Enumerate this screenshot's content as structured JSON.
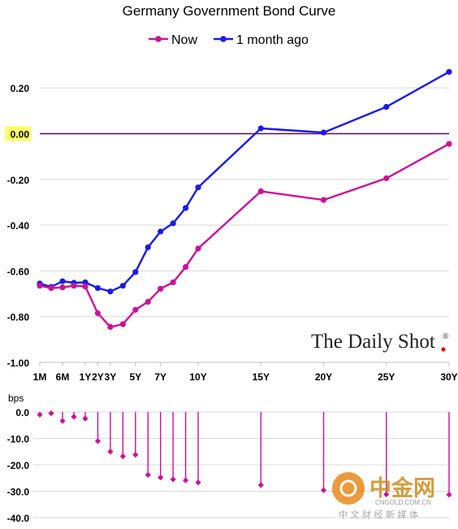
{
  "chart_data": [
    {
      "type": "line",
      "title": "Germany Government Bond Curve",
      "x": [
        "1M",
        "3M",
        "6M",
        "9M",
        "1Y",
        "2Y",
        "3Y",
        "4Y",
        "5Y",
        "6Y",
        "7Y",
        "8Y",
        "9Y",
        "10Y",
        "15Y",
        "20Y",
        "25Y",
        "30Y"
      ],
      "xtick_labels": [
        "1M",
        "6M",
        "1Y",
        "2Y",
        "3Y",
        "5Y",
        "7Y",
        "10Y",
        "15Y",
        "20Y",
        "25Y",
        "30Y"
      ],
      "series": [
        {
          "name": "Now",
          "color": "#cc1199",
          "values": [
            -0.665,
            -0.675,
            -0.672,
            -0.665,
            -0.668,
            -0.785,
            -0.845,
            -0.833,
            -0.77,
            -0.735,
            -0.678,
            -0.65,
            -0.583,
            -0.502,
            -0.252,
            -0.29,
            -0.195,
            -0.045
          ]
        },
        {
          "name": "1 month ago",
          "color": "#1a1aee",
          "values": [
            -0.655,
            -0.67,
            -0.645,
            -0.652,
            -0.65,
            -0.675,
            -0.69,
            -0.665,
            -0.605,
            -0.497,
            -0.428,
            -0.392,
            -0.325,
            -0.235,
            0.023,
            0.005,
            0.117,
            0.27
          ]
        }
      ],
      "yticks": [
        "0.20",
        "0.00",
        "-0.20",
        "-0.40",
        "-0.60",
        "-0.80",
        "-1.00"
      ],
      "ylim": [
        -1.0,
        0.3
      ],
      "zero_line_color": "#660066",
      "zero_label_highlight": "#ffff66",
      "legend_position": "top"
    },
    {
      "type": "bar",
      "ylabel": "bps",
      "x": [
        "1M",
        "3M",
        "6M",
        "9M",
        "1Y",
        "2Y",
        "3Y",
        "4Y",
        "5Y",
        "6Y",
        "7Y",
        "8Y",
        "9Y",
        "10Y",
        "15Y",
        "20Y",
        "25Y",
        "30Y"
      ],
      "values": [
        -1.0,
        -0.5,
        -3.4,
        -1.8,
        -2.5,
        -11.0,
        -15.0,
        -16.8,
        -16.2,
        -23.8,
        -24.8,
        -25.5,
        -25.9,
        -26.7,
        -27.7,
        -29.6,
        -31.2,
        -31.3
      ],
      "yticks": [
        "0.0",
        "-10.0",
        "-20.0",
        "-30.0",
        "-40.0"
      ],
      "ylim": [
        -40,
        0
      ],
      "color": "#cc1199"
    }
  ],
  "branding": {
    "daily_shot": "The Daily Shot",
    "daily_shot_mark": "®",
    "watermark_cn": "中金网",
    "watermark_url": "CNGOLD.COM.CN",
    "watermark_tagline": "中 文 财 经 新 媒 体"
  }
}
